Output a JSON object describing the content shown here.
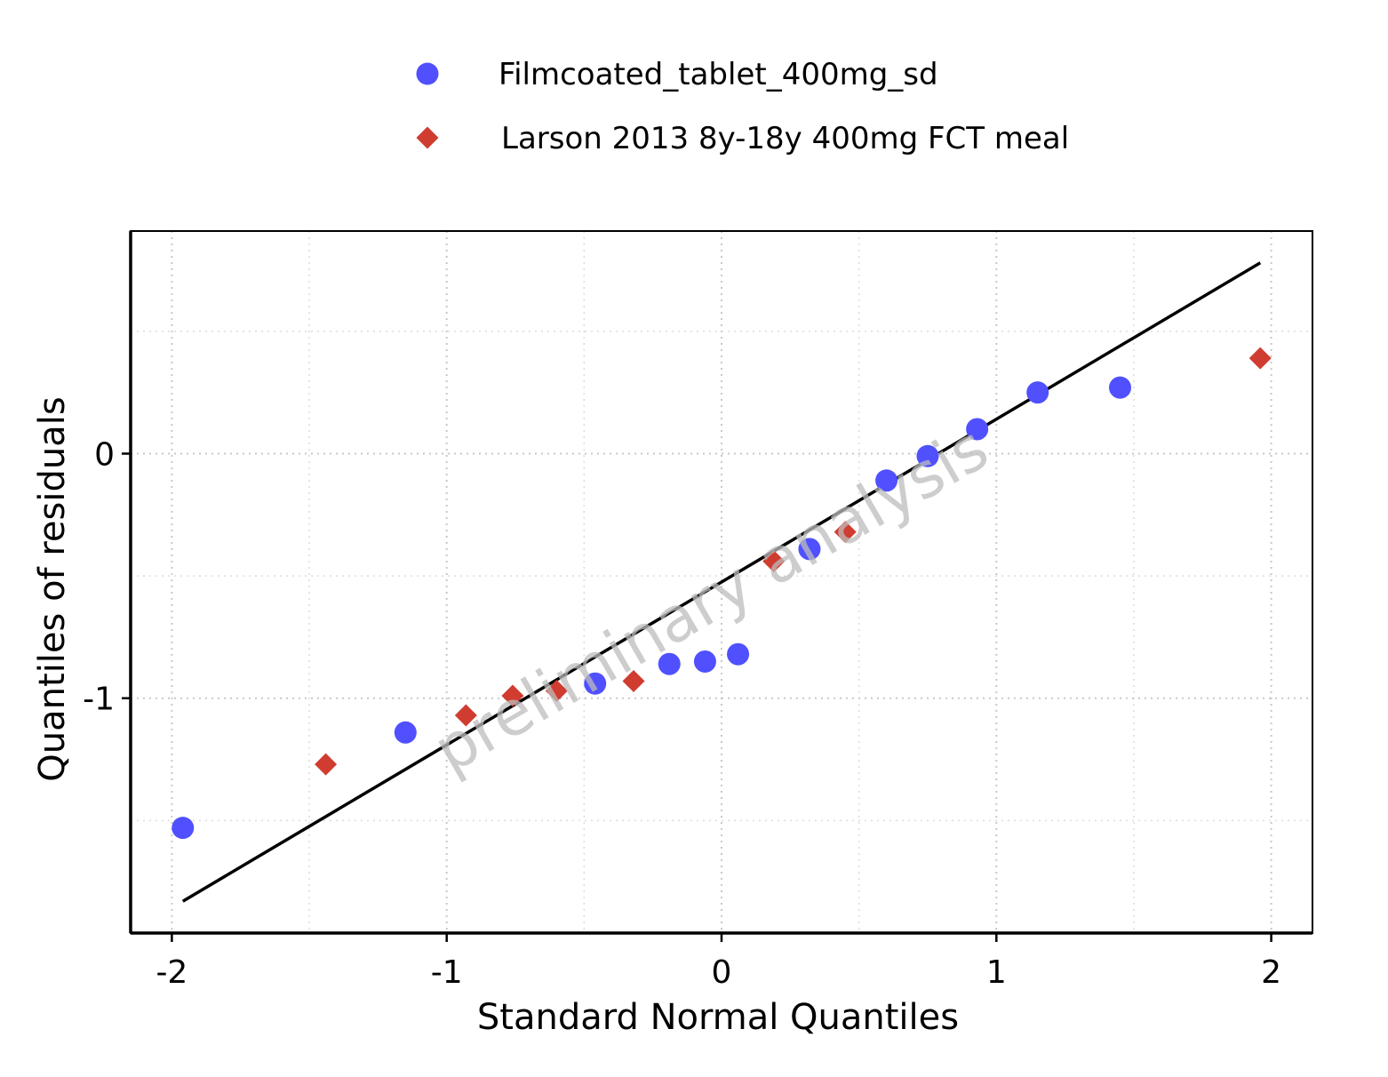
{
  "chart_data": {
    "type": "scatter",
    "xlabel": "Standard Normal Quantiles",
    "ylabel": "Quantiles of residuals",
    "xlim": [
      -2.15,
      2.15
    ],
    "ylim": [
      -1.96,
      0.91
    ],
    "x_ticks": [
      -2,
      -1,
      0,
      1,
      2
    ],
    "x_tick_labels": [
      "-2",
      "-1",
      "0",
      "1",
      "2"
    ],
    "y_ticks": [
      -1,
      0
    ],
    "y_tick_labels": [
      "-1",
      "0"
    ],
    "x_minor_grid": [
      -1.5,
      -0.5,
      0.5,
      1.5
    ],
    "y_minor_grid": [
      -1.5,
      -0.5,
      0.5
    ],
    "grid": true,
    "legend_position": "top",
    "watermark": "preliminary analysis",
    "series": [
      {
        "name": "Filmcoated_tablet_400mg_sd",
        "marker": "circle",
        "color": "#5050ff",
        "points": [
          {
            "x": -1.96,
            "y": -1.53
          },
          {
            "x": -1.15,
            "y": -1.14
          },
          {
            "x": -0.46,
            "y": -0.94
          },
          {
            "x": -0.19,
            "y": -0.86
          },
          {
            "x": -0.06,
            "y": -0.85
          },
          {
            "x": 0.06,
            "y": -0.82
          },
          {
            "x": 0.32,
            "y": -0.39
          },
          {
            "x": 0.6,
            "y": -0.11
          },
          {
            "x": 0.75,
            "y": -0.01
          },
          {
            "x": 0.93,
            "y": 0.1
          },
          {
            "x": 1.15,
            "y": 0.25
          },
          {
            "x": 1.45,
            "y": 0.27
          }
        ]
      },
      {
        "name": "Larson 2013 8y-18y 400mg FCT meal",
        "marker": "diamond",
        "color": "#d03c30",
        "points": [
          {
            "x": -1.44,
            "y": -1.27
          },
          {
            "x": -0.93,
            "y": -1.07
          },
          {
            "x": -0.76,
            "y": -0.99
          },
          {
            "x": -0.6,
            "y": -0.97
          },
          {
            "x": -0.32,
            "y": -0.93
          },
          {
            "x": 0.19,
            "y": -0.44
          },
          {
            "x": 0.45,
            "y": -0.32
          },
          {
            "x": 1.96,
            "y": 0.39
          }
        ]
      }
    ],
    "reference_line": {
      "color": "#000000",
      "x": [
        -1.96,
        1.96
      ],
      "y": [
        -1.83,
        0.78
      ]
    }
  }
}
